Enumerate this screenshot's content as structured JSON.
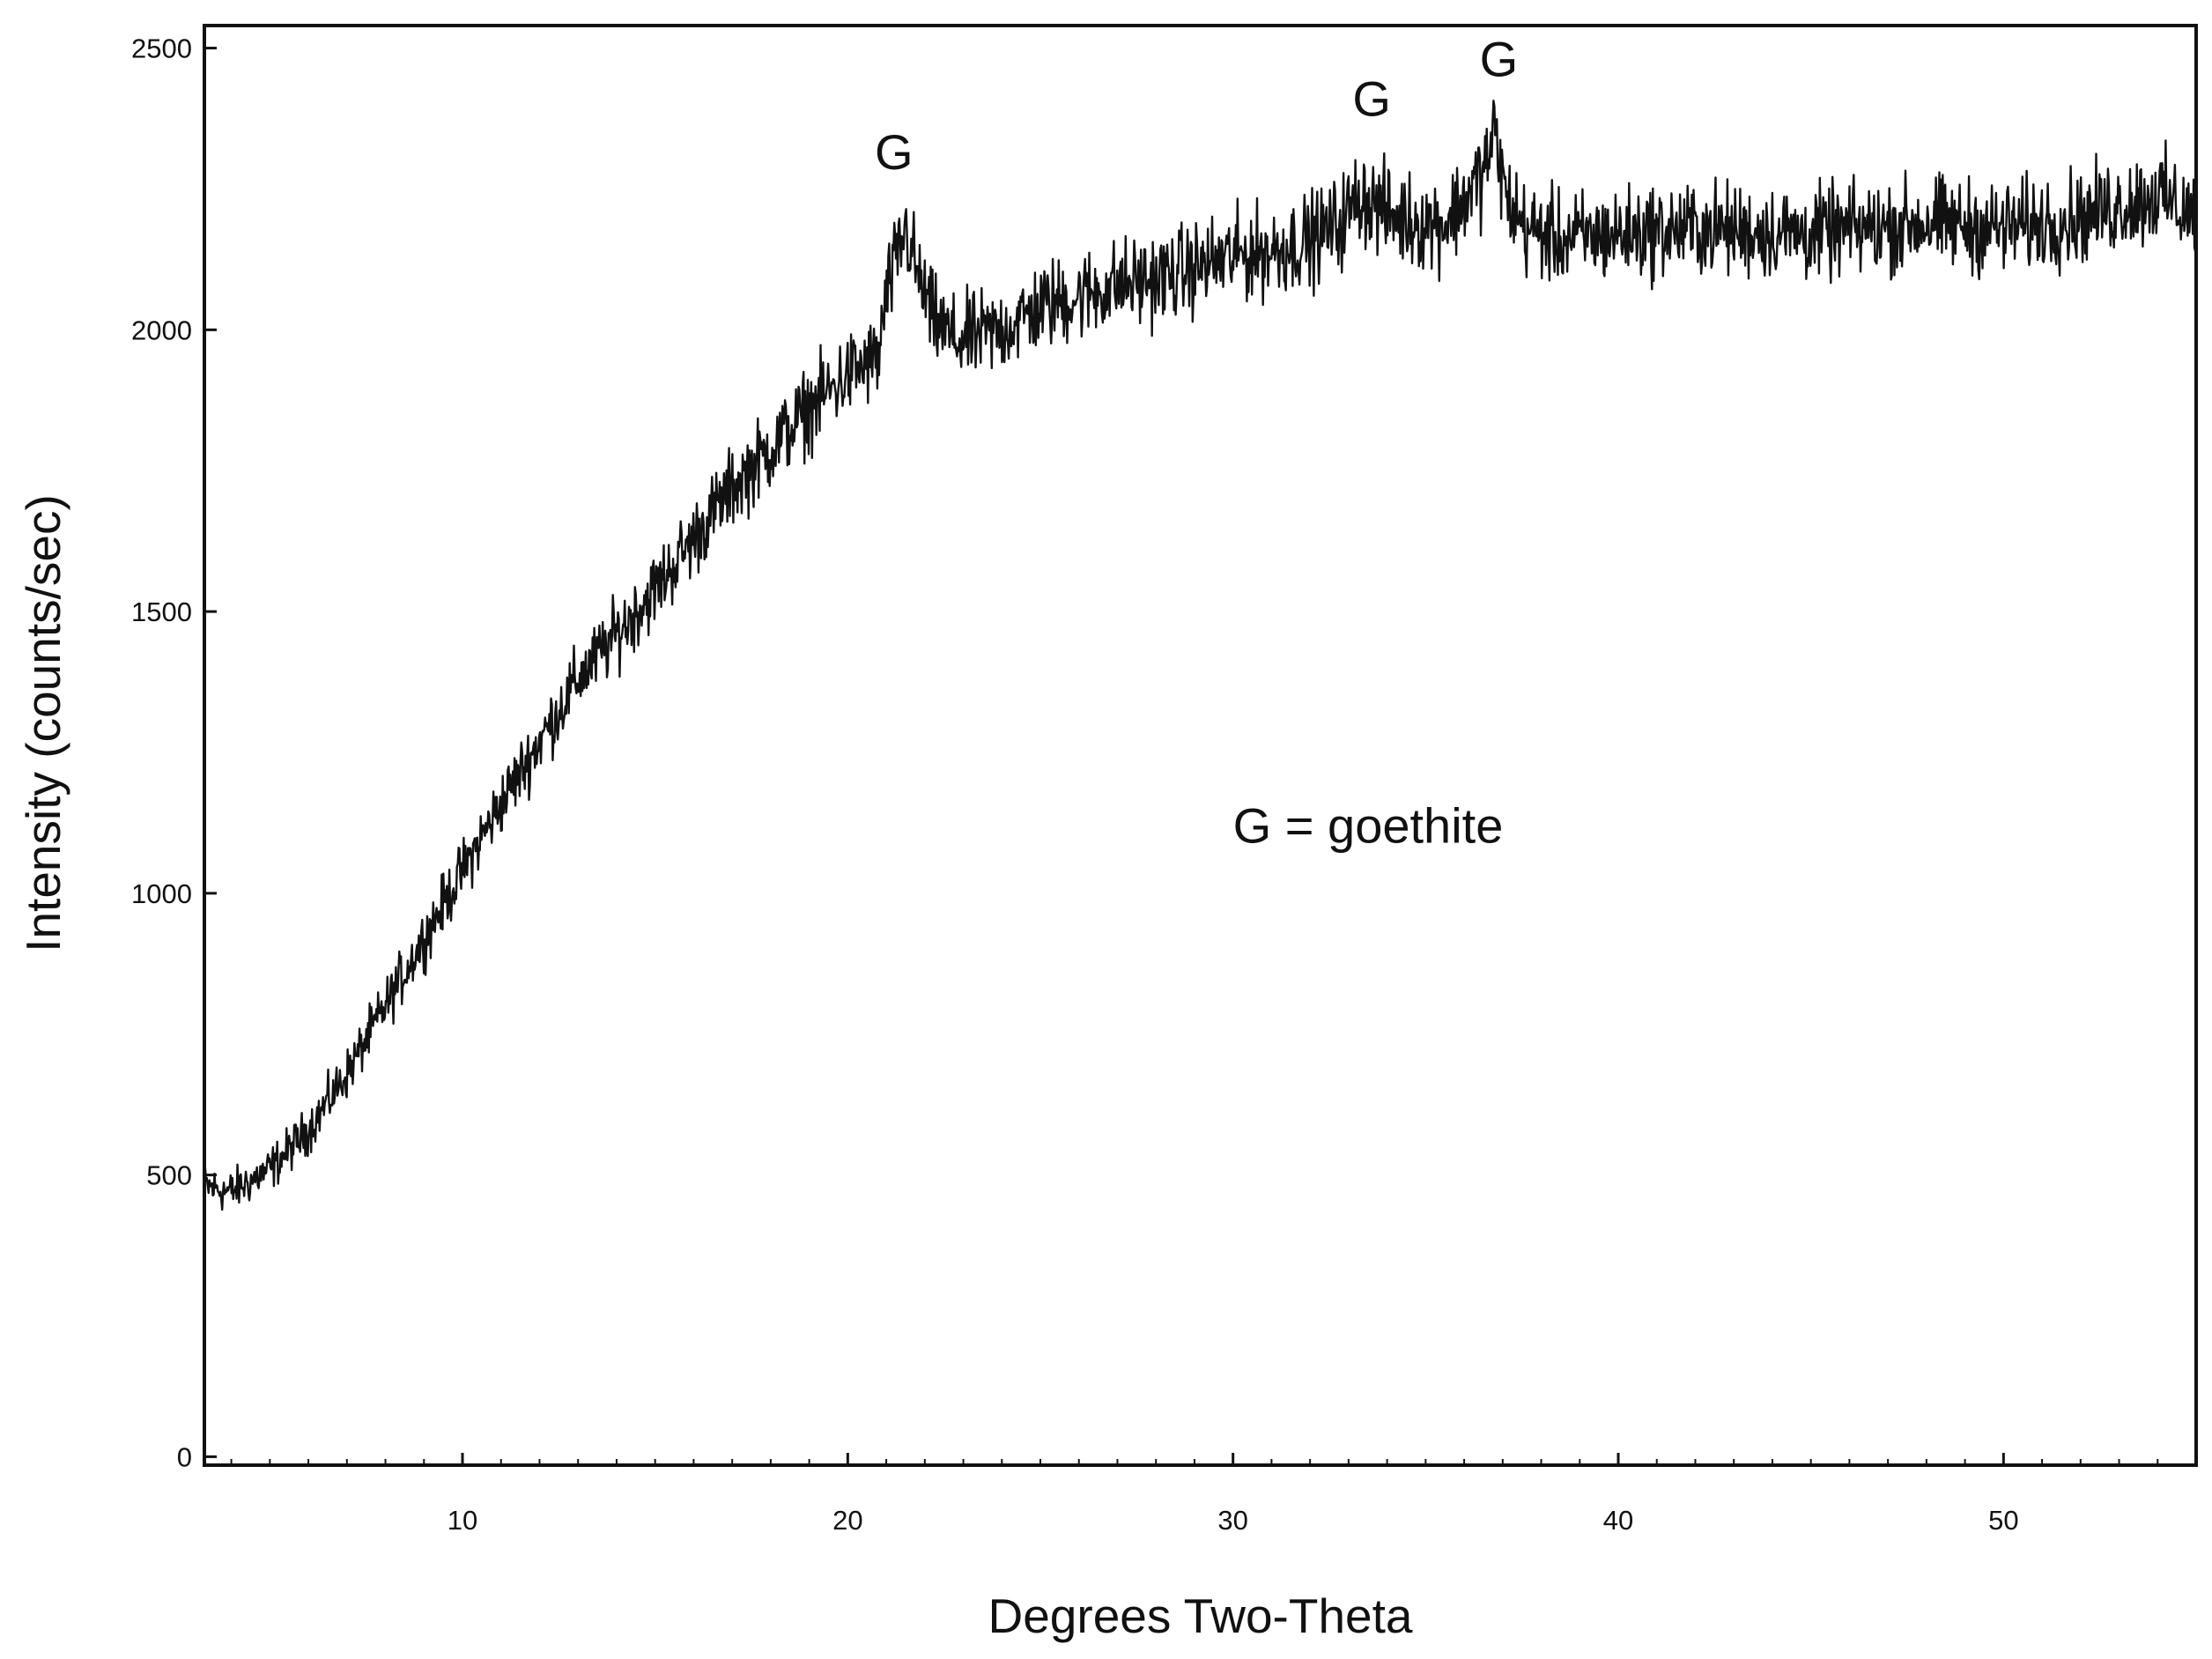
{
  "chart_data": {
    "type": "line",
    "title": "",
    "xlabel": "Degrees Two-Theta",
    "ylabel": "Intensity (counts/sec)",
    "xlim": [
      3.3,
      55
    ],
    "ylim": [
      -15,
      2540
    ],
    "x_ticks": [
      10,
      20,
      30,
      40,
      50
    ],
    "y_ticks": [
      0,
      500,
      1000,
      1500,
      2000,
      2500
    ],
    "x_tick_labels": [
      "10",
      "20",
      "30",
      "40",
      "50"
    ],
    "y_tick_labels": [
      "0",
      "500",
      "1000",
      "1500",
      "2000",
      "2500"
    ],
    "grid": false,
    "legend": "none",
    "line_color": "#111111",
    "series": [
      {
        "x": [
          3.3,
          4,
          5,
          6,
          7,
          8,
          9,
          10,
          11,
          12,
          13,
          14,
          15,
          16,
          17,
          18,
          19,
          20,
          20.8,
          21,
          21.3,
          21.5,
          21.8,
          22.2,
          22.8,
          23.5,
          24,
          25,
          26,
          27,
          28,
          29,
          30,
          31,
          32,
          32.8,
          33.3,
          33.7,
          34.2,
          35,
          35.5,
          36,
          36.5,
          36.8,
          37.1,
          37.6,
          38.5,
          40,
          42,
          45,
          48,
          50,
          52,
          54,
          55
        ],
        "y": [
          480,
          470,
          510,
          580,
          680,
          800,
          920,
          1040,
          1160,
          1270,
          1380,
          1460,
          1540,
          1630,
          1720,
          1790,
          1860,
          1920,
          1950,
          2060,
          2130,
          2180,
          2100,
          2020,
          1980,
          1990,
          2000,
          2040,
          2060,
          2080,
          2090,
          2110,
          2130,
          2140,
          2160,
          2190,
          2240,
          2220,
          2200,
          2190,
          2190,
          2230,
          2280,
          2350,
          2230,
          2180,
          2160,
          2170,
          2180,
          2170,
          2190,
          2180,
          2200,
          2240,
          2200
        ]
      }
    ],
    "annotations": [
      {
        "text": "G",
        "x": 21.2,
        "y": 2285
      },
      {
        "text": "G",
        "x": 33.6,
        "y": 2380
      },
      {
        "text": "G",
        "x": 36.9,
        "y": 2450
      },
      {
        "text": "G = goethite",
        "x": 30,
        "y": 1090
      }
    ]
  }
}
